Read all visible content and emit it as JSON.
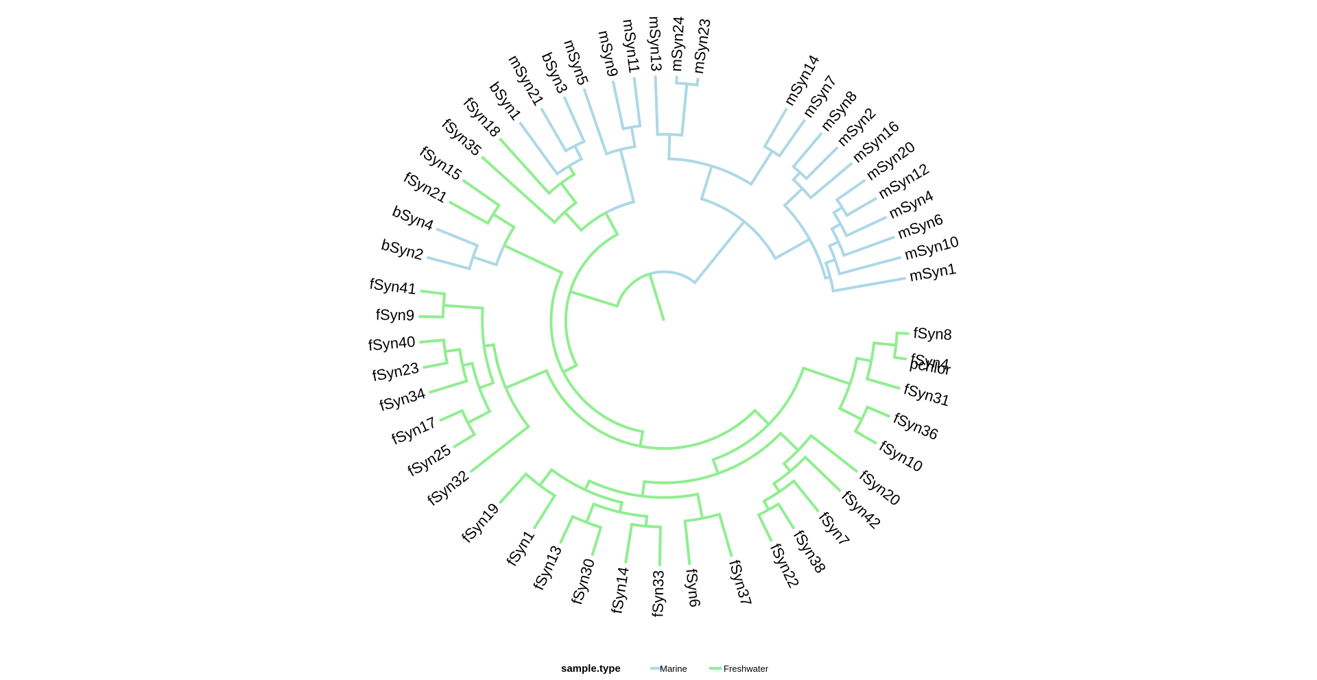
{
  "figure": {
    "type": "circular-dendrogram",
    "colors": {
      "Marine": "#add8e6",
      "Freshwater": "#90ee90"
    }
  },
  "legend": {
    "title": "sample.type",
    "items": [
      {
        "label": "Marine",
        "color": "#add8e6"
      },
      {
        "label": "Freshwater",
        "color": "#90ee90"
      }
    ]
  },
  "tips": [
    "pchlor",
    "mSyn1",
    "mSyn10",
    "mSyn6",
    "mSyn4",
    "mSyn12",
    "mSyn20",
    "mSyn16",
    "mSyn2",
    "mSyn8",
    "mSyn7",
    "mSyn14",
    "mSyn23",
    "mSyn24",
    "mSyn13",
    "mSyn11",
    "mSyn9",
    "mSyn5",
    "bSyn3",
    "mSyn21",
    "bSyn1",
    "fSyn18",
    "fSyn35",
    "fSyn15",
    "fSyn21",
    "bSyn4",
    "bSyn2",
    "fSyn41",
    "fSyn9",
    "fSyn40",
    "fSyn23",
    "fSyn34",
    "fSyn17",
    "fSyn25",
    "fSyn32",
    "fSyn19",
    "fSyn1",
    "fSyn13",
    "fSyn30",
    "fSyn14",
    "fSyn33",
    "fSyn6",
    "fSyn37",
    "fSyn22",
    "fSyn38",
    "fSyn7",
    "fSyn42",
    "fSyn20",
    "fSyn10",
    "fSyn36",
    "fSyn31",
    "fSyn4",
    "fSyn8"
  ]
}
